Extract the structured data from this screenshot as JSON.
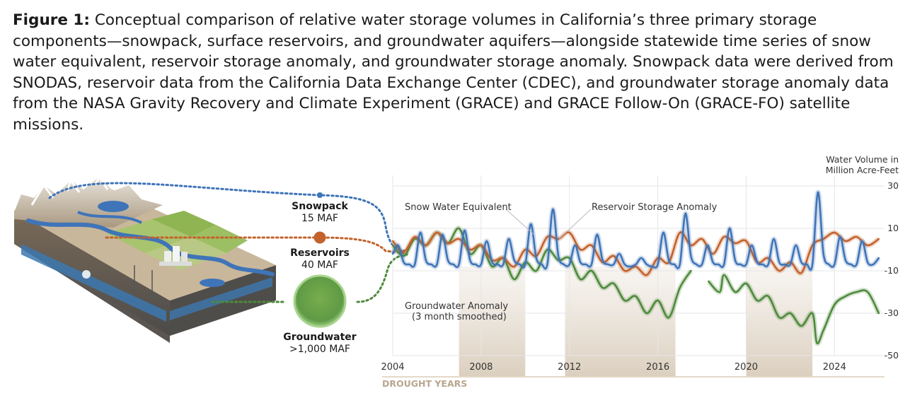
{
  "caption": {
    "label": "Figure 1:",
    "text": " Conceptual comparison of relative water storage volumes in California’s three primary storage components—snowpack, surface reservoirs, and groundwater aquifers—alongside statewide time series of snow water equivalent, reservoir storage anomaly, and groundwater storage anomaly. Snowpack data were derived from SNODAS, reservoir data from the California Data Exchange Center (CDEC), and groundwater storage anomaly data from the NASA Gravity Recovery and Climate Experiment (GRACE) and GRACE Follow-On (GRACE-FO) satellite missions."
  },
  "storage": [
    {
      "name": "Snowpack",
      "volume": "15 MAF",
      "color": "#3f74b8"
    },
    {
      "name": "Reservoirs",
      "volume": "40 MAF",
      "color": "#c4622d"
    },
    {
      "name": "Groundwater",
      "volume": ">1,000 MAF",
      "color": "#5f9a45"
    }
  ],
  "chart_data": {
    "type": "line",
    "ylabel": "Water Volume in Million Acre-Feet",
    "ylim": [
      -50,
      35
    ],
    "xlim": [
      2004,
      2026.2
    ],
    "yticks": [
      30,
      10,
      -10,
      -30,
      -50
    ],
    "xticks": [
      2004,
      2008,
      2012,
      2016,
      2020,
      2024
    ],
    "grid": true,
    "drought_label": "DROUGHT YEARS",
    "drought_periods": [
      [
        2007,
        2010
      ],
      [
        2011.8,
        2016.8
      ],
      [
        2020,
        2023
      ]
    ],
    "series": [
      {
        "name": "Snow Water Equivalent",
        "color": "#3f74b8",
        "x": [
          2004.0,
          2004.25,
          2004.5,
          2004.75,
          2005.0,
          2005.25,
          2005.5,
          2005.75,
          2006.0,
          2006.25,
          2006.5,
          2006.75,
          2007.0,
          2007.25,
          2007.5,
          2007.75,
          2008.0,
          2008.25,
          2008.5,
          2008.75,
          2009.0,
          2009.25,
          2009.5,
          2009.75,
          2010.0,
          2010.25,
          2010.5,
          2010.75,
          2011.0,
          2011.25,
          2011.5,
          2011.75,
          2012.0,
          2012.25,
          2012.5,
          2012.75,
          2013.0,
          2013.25,
          2013.5,
          2013.75,
          2014.0,
          2014.25,
          2014.5,
          2014.75,
          2015.0,
          2015.25,
          2015.5,
          2015.75,
          2016.0,
          2016.25,
          2016.5,
          2016.75,
          2017.0,
          2017.25,
          2017.5,
          2017.75,
          2018.0,
          2018.25,
          2018.5,
          2018.75,
          2019.0,
          2019.25,
          2019.5,
          2019.75,
          2020.0,
          2020.25,
          2020.5,
          2020.75,
          2021.0,
          2021.25,
          2021.5,
          2021.75,
          2022.0,
          2022.25,
          2022.5,
          2022.75,
          2023.0,
          2023.25,
          2023.5,
          2023.75,
          2024.0,
          2024.25,
          2024.5,
          2024.75,
          2025.0,
          2025.25,
          2025.5,
          2025.75,
          2026.0
        ],
        "values": [
          -2,
          2,
          -6,
          -7,
          -7,
          8,
          -5,
          -7,
          -7,
          7,
          -5,
          -7,
          -7,
          9,
          -5,
          -7,
          -7,
          4,
          -6,
          -7,
          -7,
          5,
          -5,
          -7,
          -7,
          12,
          -4,
          -7,
          -7,
          19,
          -3,
          -7,
          -7,
          2,
          -6,
          -7,
          -7,
          7,
          -5,
          -7,
          -7,
          -2,
          -7,
          -8,
          -7,
          -4,
          -7,
          -8,
          -7,
          8,
          -5,
          -7,
          -7,
          17,
          -3,
          -7,
          -7,
          2,
          -6,
          -7,
          -7,
          10,
          -5,
          -7,
          -7,
          2,
          -6,
          -7,
          -7,
          5,
          -6,
          -7,
          -7,
          2,
          -6,
          -7,
          -7,
          27,
          -2,
          -7,
          -7,
          6,
          -5,
          -7,
          -7,
          4,
          -6,
          -7,
          -4
        ]
      },
      {
        "name": "Reservoir Storage Anomaly",
        "color": "#c4622d",
        "x": [
          2004.0,
          2004.5,
          2005.0,
          2005.5,
          2006.0,
          2006.5,
          2007.0,
          2007.5,
          2008.0,
          2008.5,
          2009.0,
          2009.5,
          2010.0,
          2010.5,
          2011.0,
          2011.5,
          2012.0,
          2012.5,
          2013.0,
          2013.5,
          2014.0,
          2014.5,
          2015.0,
          2015.5,
          2016.0,
          2016.5,
          2017.0,
          2017.5,
          2018.0,
          2018.5,
          2019.0,
          2019.5,
          2020.0,
          2020.5,
          2021.0,
          2021.5,
          2022.0,
          2022.5,
          2023.0,
          2023.5,
          2024.0,
          2024.5,
          2025.0,
          2025.5,
          2026.0
        ],
        "values": [
          4,
          -1,
          6,
          2,
          8,
          3,
          5,
          0,
          2,
          -5,
          -4,
          -8,
          0,
          -3,
          6,
          5,
          8,
          0,
          2,
          -6,
          -3,
          -10,
          -8,
          -12,
          -4,
          -6,
          8,
          2,
          5,
          -2,
          6,
          3,
          4,
          -6,
          -4,
          -10,
          -6,
          -11,
          2,
          5,
          8,
          4,
          6,
          2,
          5
        ]
      },
      {
        "name": "Groundwater Anomaly (3 month smoothed)",
        "color": "#4e8a3c",
        "x": [
          2004.0,
          2004.5,
          2005.0,
          2005.5,
          2006.0,
          2006.5,
          2007.0,
          2007.5,
          2008.0,
          2008.5,
          2009.0,
          2009.5,
          2010.0,
          2010.5,
          2011.0,
          2011.5,
          2012.0,
          2012.5,
          2013.0,
          2013.5,
          2014.0,
          2014.5,
          2015.0,
          2015.5,
          2016.0,
          2016.5,
          2017.0,
          2017.5,
          null,
          2018.3,
          2018.8,
          2019.0,
          2019.5,
          2020.0,
          2020.5,
          2021.0,
          2021.5,
          2022.0,
          2022.5,
          2023.0,
          2023.2,
          2023.5,
          2024.0,
          2024.5,
          2025.0,
          2025.5,
          2026.0
        ],
        "values": [
          2,
          -3,
          5,
          2,
          8,
          3,
          10,
          -2,
          2,
          -8,
          -4,
          -14,
          -6,
          -10,
          0,
          -5,
          -4,
          -14,
          -10,
          -18,
          -16,
          -24,
          -22,
          -30,
          -24,
          -32,
          -18,
          -10,
          null,
          -15,
          -20,
          -12,
          -20,
          -16,
          -24,
          -22,
          -32,
          -30,
          -36,
          -30,
          -44,
          -38,
          -26,
          -22,
          -20,
          -20,
          -30
        ]
      }
    ],
    "annotations": [
      "Snow Water Equivalent",
      "Reservoir Storage Anomaly",
      "Groundwater Anomaly",
      "(3 month smoothed)"
    ]
  }
}
